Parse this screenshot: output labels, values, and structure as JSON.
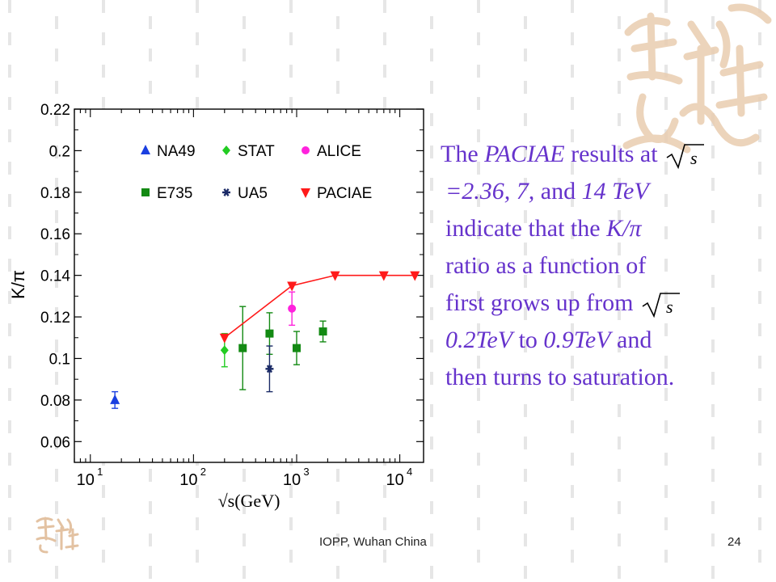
{
  "slide": {
    "text_lines": [
      {
        "parts": [
          {
            "t": "The ",
            "i": false
          },
          {
            "t": "PACIAE",
            "i": true
          },
          {
            "t": " results at ",
            "i": false
          }
        ],
        "sqrt_after": true
      },
      {
        "parts": [
          {
            "t": "=2.36, 7,",
            "i": true
          },
          {
            "t": " and ",
            "i": false
          },
          {
            "t": "14 TeV",
            "i": true
          }
        ],
        "sqrt_after": false
      },
      {
        "parts": [
          {
            "t": "indicate that the ",
            "i": false
          },
          {
            "t": "K/π",
            "i": true
          }
        ],
        "sqrt_after": false
      },
      {
        "parts": [
          {
            "t": "ratio as a function of",
            "i": false
          }
        ],
        "sqrt_after": false
      },
      {
        "parts": [
          {
            "t": "first grows up from ",
            "i": false
          }
        ],
        "sqrt_after": true
      },
      {
        "parts": [
          {
            "t": "0.2TeV",
            "i": true
          },
          {
            "t": " to ",
            "i": false
          },
          {
            "t": "0.9TeV",
            "i": true
          },
          {
            "t": " and",
            "i": false
          }
        ],
        "sqrt_after": false
      },
      {
        "parts": [
          {
            "t": "then turns to saturation.",
            "i": false
          }
        ],
        "sqrt_after": false
      }
    ],
    "text_color": "#6633cc",
    "footer_center": "IOPP, Wuhan China",
    "page_number": "24"
  },
  "chart_data": {
    "type": "scatter",
    "ylabel": "K/π",
    "xlabel": "√s(GeV)",
    "x_scale": "log",
    "xlim": [
      7,
      17000
    ],
    "ylim": [
      0.05,
      0.22
    ],
    "x_ticks": [
      10,
      100,
      1000,
      10000
    ],
    "x_tick_labels": [
      {
        "base": "10",
        "exp": "1"
      },
      {
        "base": "10",
        "exp": "2"
      },
      {
        "base": "10",
        "exp": "3"
      },
      {
        "base": "10",
        "exp": "4"
      }
    ],
    "y_ticks": [
      0.06,
      0.08,
      0.1,
      0.12,
      0.14,
      0.16,
      0.18,
      0.2,
      0.22
    ],
    "y_tick_labels": [
      "0.06",
      "0.08",
      "0.1",
      "0.12",
      "0.14",
      "0.16",
      "0.18",
      "0.2",
      "0.22"
    ],
    "legend_position": "top",
    "series": [
      {
        "name": "NA49",
        "marker": "triangle-up",
        "color": "#1a3fe0",
        "points": [
          {
            "x": 17.3,
            "y": 0.08,
            "err": 0.004
          }
        ]
      },
      {
        "name": "STAT",
        "marker": "diamond",
        "color": "#22cc22",
        "points": [
          {
            "x": 200,
            "y": 0.104,
            "err": 0.008
          }
        ]
      },
      {
        "name": "ALICE",
        "marker": "circle",
        "color": "#ff22dd",
        "points": [
          {
            "x": 900,
            "y": 0.124,
            "err": 0.008
          }
        ]
      },
      {
        "name": "E735",
        "marker": "square",
        "color": "#138a13",
        "points": [
          {
            "x": 300,
            "y": 0.105,
            "err": 0.02
          },
          {
            "x": 546,
            "y": 0.112,
            "err": 0.01
          },
          {
            "x": 1000,
            "y": 0.105,
            "err": 0.008
          },
          {
            "x": 1800,
            "y": 0.113,
            "err": 0.005
          }
        ]
      },
      {
        "name": "UA5",
        "marker": "star",
        "color": "#1a2a66",
        "points": [
          {
            "x": 546,
            "y": 0.095,
            "err": 0.011
          }
        ]
      },
      {
        "name": "PACIAE",
        "marker": "triangle-down",
        "color": "#ff1a1a",
        "line": true,
        "points": [
          {
            "x": 200,
            "y": 0.11
          },
          {
            "x": 900,
            "y": 0.135
          },
          {
            "x": 2360,
            "y": 0.14
          },
          {
            "x": 7000,
            "y": 0.14
          },
          {
            "x": 14000,
            "y": 0.14
          }
        ]
      }
    ]
  }
}
